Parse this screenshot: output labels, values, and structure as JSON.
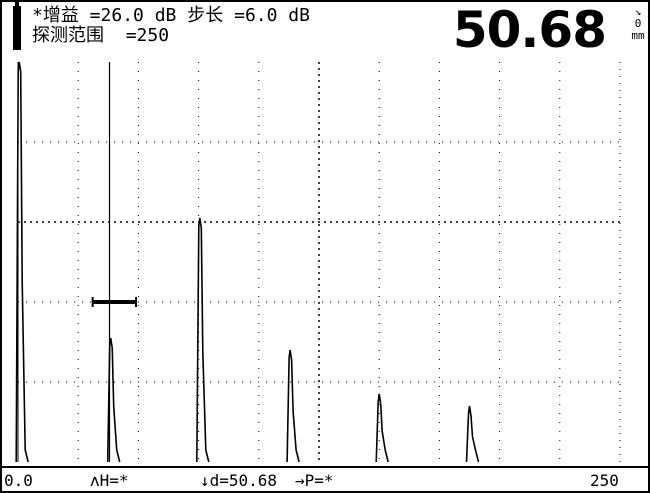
{
  "header": {
    "gain_prefix": "*增益 =",
    "gain_value": "26.0",
    "gain_unit": "dB",
    "step_label": "步长 =",
    "step_value": "6.0",
    "step_unit": "dB",
    "range_label": "探测范围",
    "range_value": "=250",
    "big_reading": "50.68",
    "unit_arrow": "↘",
    "unit_zero": "0",
    "unit_mm": "mm"
  },
  "scope": {
    "range_min": 0,
    "range_max": 250,
    "gate": {
      "start": 31,
      "end": 49,
      "level": 0.4
    },
    "cursor_position": 38,
    "echoes": [
      {
        "pos": 0.5,
        "height": 1.0
      },
      {
        "pos": 38.5,
        "height": 0.31
      },
      {
        "pos": 75.5,
        "height": 0.61
      },
      {
        "pos": 113,
        "height": 0.28
      },
      {
        "pos": 150,
        "height": 0.17
      },
      {
        "pos": 187.5,
        "height": 0.14
      }
    ],
    "grid_color": "#000000",
    "trace_color": "#000000"
  },
  "statusbar": {
    "left_value": "0.0",
    "h_reading": "ʌH=*",
    "d_reading": "↓d=50.68",
    "p_reading": "→P=*",
    "right_value": "250"
  }
}
